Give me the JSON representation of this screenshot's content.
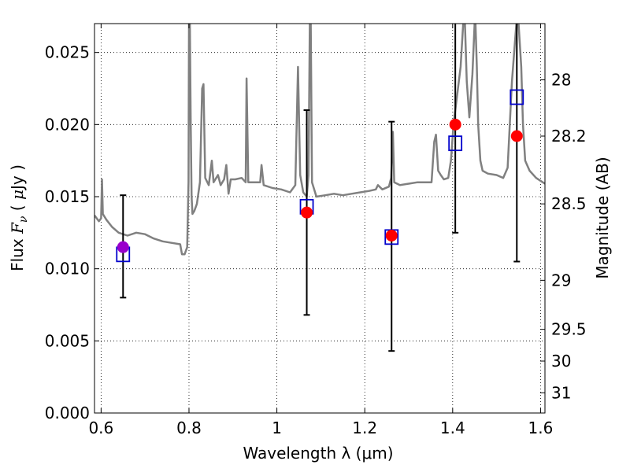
{
  "chart_data": {
    "type": "scatter",
    "xlabel": "Wavelength  λ (μm)",
    "ylabel": "Flux  F_ν ( μJy )",
    "y2label": "Magnitude (AB)",
    "xlim": [
      0.585,
      1.61
    ],
    "ylim": [
      0.0,
      0.027
    ],
    "xticks": [
      {
        "value": 0.6,
        "label": "0.6"
      },
      {
        "value": 0.8,
        "label": "0.8"
      },
      {
        "value": 1.0,
        "label": "1"
      },
      {
        "value": 1.2,
        "label": "1.2"
      },
      {
        "value": 1.4,
        "label": "1.4"
      },
      {
        "value": 1.6,
        "label": "1.6"
      }
    ],
    "yticks": [
      {
        "value": 0.0,
        "label": "0.000"
      },
      {
        "value": 0.005,
        "label": "0.005"
      },
      {
        "value": 0.01,
        "label": "0.010"
      },
      {
        "value": 0.015,
        "label": "0.015"
      },
      {
        "value": 0.02,
        "label": "0.020"
      },
      {
        "value": 0.025,
        "label": "0.025"
      }
    ],
    "y2ticks": [
      {
        "flux": 0.0231,
        "label": "28"
      },
      {
        "flux": 0.0192,
        "label": "28.2"
      },
      {
        "flux": 0.0145,
        "label": "28.5"
      },
      {
        "flux": 0.0092,
        "label": "29"
      },
      {
        "flux": 0.0058,
        "label": "29.5"
      },
      {
        "flux": 0.0036,
        "label": "30"
      },
      {
        "flux": 0.0014,
        "label": "31"
      }
    ],
    "grid": true,
    "colors": {
      "spectrum": "#808080",
      "model": "#0000cc",
      "observed": "#ff0000",
      "highlight": "#9900cc",
      "errorbar": "#000000"
    },
    "spectrum": [
      [
        0.585,
        0.0137
      ],
      [
        0.595,
        0.0133
      ],
      [
        0.6,
        0.0135
      ],
      [
        0.602,
        0.0162
      ],
      [
        0.604,
        0.0138
      ],
      [
        0.612,
        0.0134
      ],
      [
        0.625,
        0.0129
      ],
      [
        0.64,
        0.0125
      ],
      [
        0.66,
        0.0123
      ],
      [
        0.68,
        0.0125
      ],
      [
        0.7,
        0.0124
      ],
      [
        0.72,
        0.0121
      ],
      [
        0.74,
        0.0119
      ],
      [
        0.76,
        0.0118
      ],
      [
        0.78,
        0.0117
      ],
      [
        0.784,
        0.011
      ],
      [
        0.79,
        0.011
      ],
      [
        0.796,
        0.0115
      ],
      [
        0.799,
        0.016
      ],
      [
        0.8,
        0.027
      ],
      [
        0.802,
        0.027
      ],
      [
        0.804,
        0.02
      ],
      [
        0.806,
        0.015
      ],
      [
        0.808,
        0.0138
      ],
      [
        0.812,
        0.014
      ],
      [
        0.818,
        0.0145
      ],
      [
        0.825,
        0.016
      ],
      [
        0.83,
        0.0225
      ],
      [
        0.833,
        0.0228
      ],
      [
        0.837,
        0.0163
      ],
      [
        0.845,
        0.0158
      ],
      [
        0.852,
        0.0175
      ],
      [
        0.856,
        0.016
      ],
      [
        0.866,
        0.0165
      ],
      [
        0.872,
        0.0158
      ],
      [
        0.88,
        0.0162
      ],
      [
        0.885,
        0.0172
      ],
      [
        0.89,
        0.0152
      ],
      [
        0.895,
        0.0162
      ],
      [
        0.905,
        0.0162
      ],
      [
        0.92,
        0.0163
      ],
      [
        0.929,
        0.016
      ],
      [
        0.931,
        0.0232
      ],
      [
        0.935,
        0.016
      ],
      [
        0.95,
        0.016
      ],
      [
        0.962,
        0.016
      ],
      [
        0.965,
        0.0172
      ],
      [
        0.97,
        0.0158
      ],
      [
        0.99,
        0.0156
      ],
      [
        1.01,
        0.0155
      ],
      [
        1.03,
        0.0153
      ],
      [
        1.042,
        0.0158
      ],
      [
        1.048,
        0.024
      ],
      [
        1.053,
        0.0165
      ],
      [
        1.06,
        0.0153
      ],
      [
        1.068,
        0.015
      ],
      [
        1.072,
        0.0165
      ],
      [
        1.075,
        0.027
      ],
      [
        1.077,
        0.027
      ],
      [
        1.08,
        0.016
      ],
      [
        1.09,
        0.015
      ],
      [
        1.11,
        0.0151
      ],
      [
        1.13,
        0.0152
      ],
      [
        1.15,
        0.0151
      ],
      [
        1.17,
        0.0152
      ],
      [
        1.19,
        0.0153
      ],
      [
        1.21,
        0.0154
      ],
      [
        1.225,
        0.0155
      ],
      [
        1.23,
        0.0158
      ],
      [
        1.24,
        0.0155
      ],
      [
        1.255,
        0.0157
      ],
      [
        1.26,
        0.0163
      ],
      [
        1.264,
        0.0195
      ],
      [
        1.267,
        0.016
      ],
      [
        1.28,
        0.0158
      ],
      [
        1.3,
        0.0159
      ],
      [
        1.32,
        0.016
      ],
      [
        1.34,
        0.016
      ],
      [
        1.352,
        0.016
      ],
      [
        1.358,
        0.0188
      ],
      [
        1.362,
        0.0193
      ],
      [
        1.367,
        0.0168
      ],
      [
        1.373,
        0.0165
      ],
      [
        1.38,
        0.0162
      ],
      [
        1.39,
        0.0163
      ],
      [
        1.396,
        0.0175
      ],
      [
        1.402,
        0.02
      ],
      [
        1.41,
        0.022
      ],
      [
        1.418,
        0.024
      ],
      [
        1.424,
        0.027
      ],
      [
        1.428,
        0.027
      ],
      [
        1.432,
        0.023
      ],
      [
        1.438,
        0.0205
      ],
      [
        1.445,
        0.0235
      ],
      [
        1.45,
        0.027
      ],
      [
        1.452,
        0.027
      ],
      [
        1.455,
        0.024
      ],
      [
        1.458,
        0.02
      ],
      [
        1.463,
        0.0175
      ],
      [
        1.468,
        0.0168
      ],
      [
        1.48,
        0.0166
      ],
      [
        1.5,
        0.0165
      ],
      [
        1.515,
        0.0163
      ],
      [
        1.525,
        0.017
      ],
      [
        1.535,
        0.023
      ],
      [
        1.545,
        0.027
      ],
      [
        1.55,
        0.027
      ],
      [
        1.556,
        0.024
      ],
      [
        1.56,
        0.02
      ],
      [
        1.565,
        0.0175
      ],
      [
        1.575,
        0.0168
      ],
      [
        1.59,
        0.0163
      ],
      [
        1.605,
        0.016
      ],
      [
        1.61,
        0.0159
      ]
    ],
    "observed": [
      {
        "x": 0.65,
        "y": 0.0115,
        "err_low": 0.008,
        "err_high": 0.0151,
        "highlight": true
      },
      {
        "x": 1.068,
        "y": 0.0139,
        "err_low": 0.0068,
        "err_high": 0.021,
        "highlight": false
      },
      {
        "x": 1.261,
        "y": 0.0123,
        "err_low": 0.0043,
        "err_high": 0.0202,
        "highlight": false
      },
      {
        "x": 1.406,
        "y": 0.02,
        "err_low": 0.0125,
        "err_high": 0.027,
        "highlight": false
      },
      {
        "x": 1.546,
        "y": 0.0192,
        "err_low": 0.0105,
        "err_high": 0.027,
        "highlight": false
      }
    ],
    "model": [
      {
        "x": 0.65,
        "y": 0.011
      },
      {
        "x": 1.068,
        "y": 0.0143
      },
      {
        "x": 1.261,
        "y": 0.0122
      },
      {
        "x": 1.406,
        "y": 0.0187
      },
      {
        "x": 1.546,
        "y": 0.0219
      }
    ]
  }
}
